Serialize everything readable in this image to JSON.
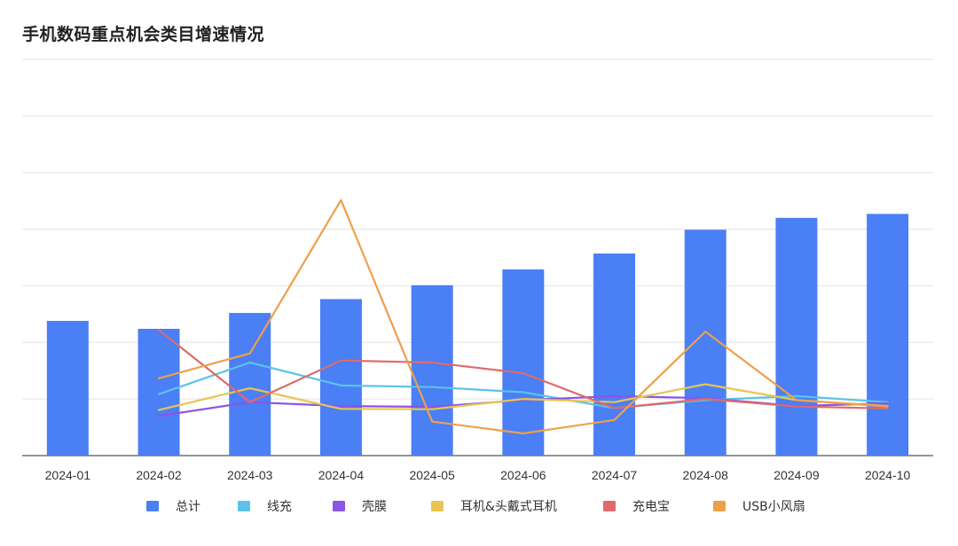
{
  "chart_data": {
    "type": "bar",
    "title": "手机数码重点机会类目增速情况",
    "categories": [
      "2024-01",
      "2024-02",
      "2024-03",
      "2024-04",
      "2024-05",
      "2024-06",
      "2024-07",
      "2024-08",
      "2024-09",
      "2024-10"
    ],
    "ylim": [
      0,
      100
    ],
    "grid": true,
    "legend": "bottom",
    "series": [
      {
        "name": "总计",
        "type": "bar",
        "color": "#4a7ff5",
        "values": [
          34,
          32,
          36,
          39.5,
          43,
          47,
          51,
          57,
          60,
          61
        ]
      },
      {
        "name": "线充",
        "type": "line",
        "color": "#5bc3e8",
        "values": [
          null,
          15.5,
          23.5,
          17.7,
          17.3,
          16,
          12,
          14,
          15,
          13.5
        ]
      },
      {
        "name": "壳膜",
        "type": "line",
        "color": "#8b55e3",
        "values": [
          null,
          10,
          13.5,
          12.5,
          12.3,
          14,
          15,
          14.5,
          12.5,
          13.2
        ]
      },
      {
        "name": "耳机&头戴式耳机",
        "type": "line",
        "color": "#e8c552",
        "values": [
          null,
          11.5,
          17,
          11.8,
          11.7,
          14.3,
          13.5,
          18,
          14,
          12.5
        ]
      },
      {
        "name": "充电宝",
        "type": "line",
        "color": "#e06a6a",
        "values": [
          null,
          31.7,
          13.5,
          24,
          23.5,
          20.8,
          12,
          14.3,
          12.4,
          11.9
        ]
      },
      {
        "name": "USB小风扇",
        "type": "line",
        "color": "#eea04a",
        "values": [
          null,
          19.5,
          25.8,
          64.5,
          8.6,
          5.6,
          9,
          31.3,
          14,
          12.4
        ]
      }
    ]
  }
}
